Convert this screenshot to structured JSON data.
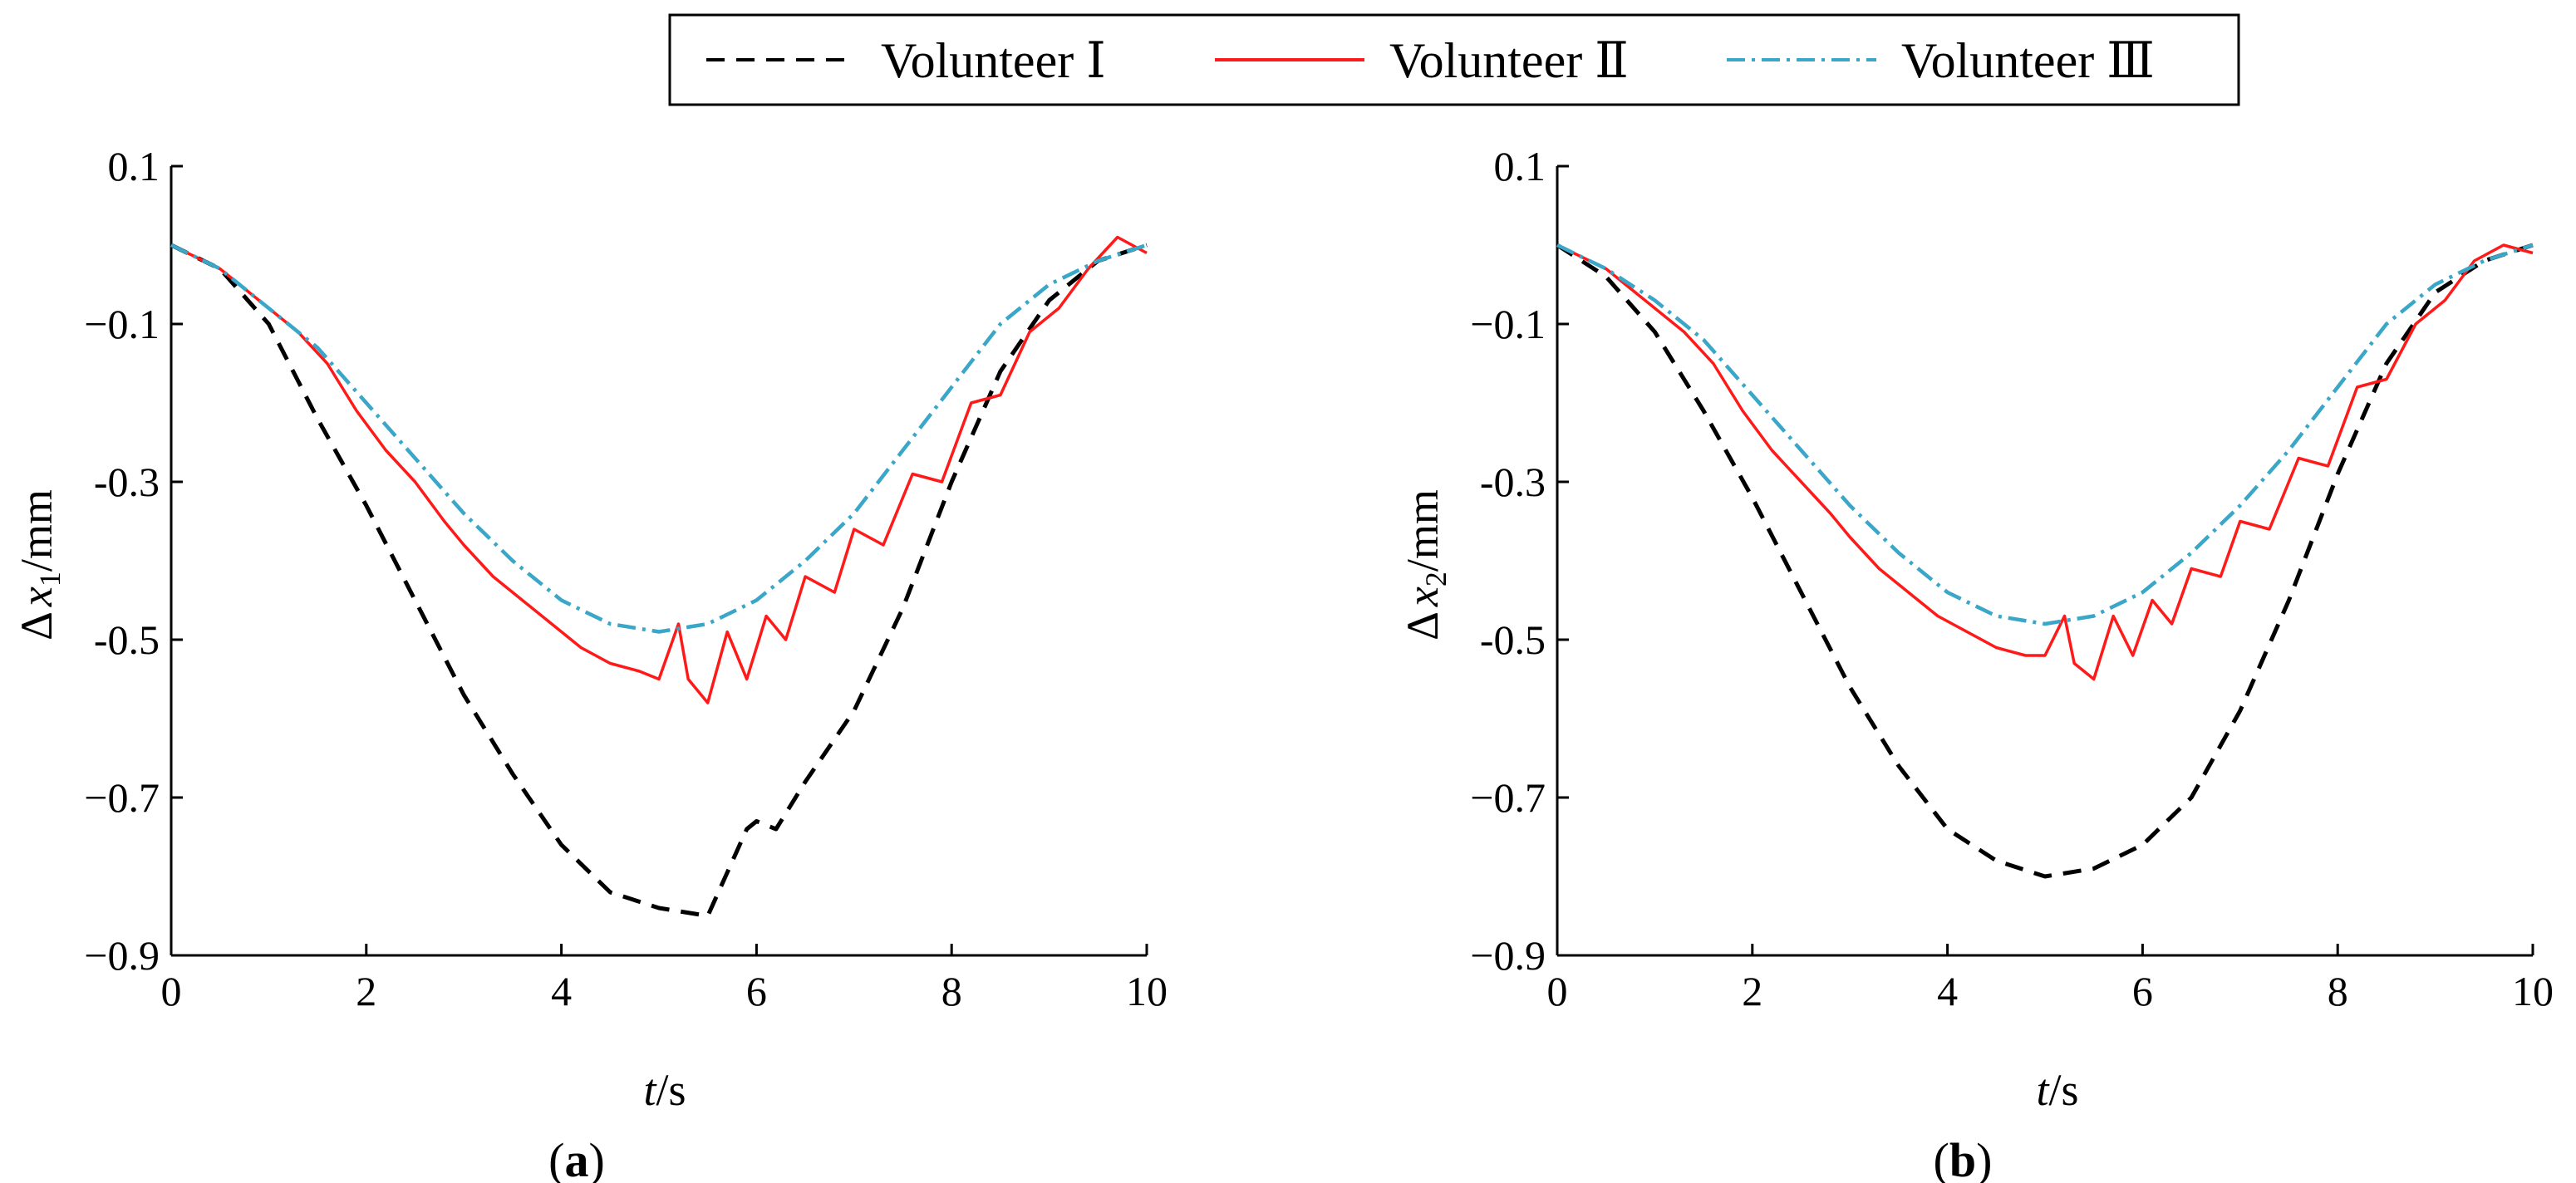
{
  "legend": {
    "entries": [
      {
        "label": "Volunteer Ⅰ",
        "color": "#000000",
        "style": "dashed"
      },
      {
        "label": "Volunteer Ⅱ",
        "color": "#ff1a1a",
        "style": "solid"
      },
      {
        "label": "Volunteer Ⅲ",
        "color": "#3aa6c8",
        "style": "dashdot"
      }
    ],
    "placement": "top-center"
  },
  "chart_data": [
    {
      "type": "line",
      "panel_label": "a",
      "xlabel": {
        "italic": "t",
        "rest": "/s"
      },
      "ylabel": {
        "prefix": "Δ",
        "var": "x",
        "sub": "1",
        "unit": "/mm"
      },
      "xlim": [
        0,
        10
      ],
      "ylim": [
        -0.9,
        0.1
      ],
      "xticks": [
        0,
        2,
        4,
        6,
        8,
        10
      ],
      "xtick_labels": [
        "0",
        "2",
        "4",
        "6",
        "8",
        "10"
      ],
      "yticks": [
        0.1,
        -0.1,
        -0.3,
        -0.5,
        -0.7,
        -0.9
      ],
      "ytick_labels": [
        "0.1",
        "−0.1",
        "-0.3",
        "-0.5",
        "−0.7",
        "−0.9"
      ],
      "grid": false,
      "series": [
        {
          "name": "Volunteer Ⅰ",
          "x": [
            0,
            0.5,
            1.0,
            1.5,
            2.0,
            2.5,
            3.0,
            3.5,
            4.0,
            4.5,
            5.0,
            5.5,
            5.9,
            6.0,
            6.2,
            6.5,
            7.0,
            7.5,
            8.0,
            8.5,
            9.0,
            9.5,
            10.0
          ],
          "values": [
            0.0,
            -0.03,
            -0.1,
            -0.22,
            -0.33,
            -0.45,
            -0.57,
            -0.67,
            -0.76,
            -0.82,
            -0.84,
            -0.85,
            -0.74,
            -0.73,
            -0.74,
            -0.68,
            -0.59,
            -0.46,
            -0.3,
            -0.16,
            -0.07,
            -0.02,
            0.0
          ]
        },
        {
          "name": "Volunteer Ⅱ",
          "x": [
            0,
            0.5,
            1.0,
            1.3,
            1.6,
            1.9,
            2.2,
            2.5,
            2.8,
            3.0,
            3.3,
            3.6,
            3.9,
            4.2,
            4.5,
            4.8,
            5.0,
            5.2,
            5.3,
            5.5,
            5.7,
            5.9,
            6.1,
            6.3,
            6.5,
            6.8,
            7.0,
            7.3,
            7.6,
            7.9,
            8.2,
            8.5,
            8.8,
            9.1,
            9.4,
            9.7,
            10.0
          ],
          "values": [
            0.0,
            -0.03,
            -0.08,
            -0.11,
            -0.15,
            -0.21,
            -0.26,
            -0.3,
            -0.35,
            -0.38,
            -0.42,
            -0.45,
            -0.48,
            -0.51,
            -0.53,
            -0.54,
            -0.55,
            -0.48,
            -0.55,
            -0.58,
            -0.49,
            -0.55,
            -0.47,
            -0.5,
            -0.42,
            -0.44,
            -0.36,
            -0.38,
            -0.29,
            -0.3,
            -0.2,
            -0.19,
            -0.11,
            -0.08,
            -0.03,
            0.01,
            -0.01
          ]
        },
        {
          "name": "Volunteer Ⅲ",
          "x": [
            0,
            0.5,
            1.0,
            1.5,
            2.0,
            2.5,
            3.0,
            3.5,
            4.0,
            4.5,
            5.0,
            5.5,
            6.0,
            6.5,
            7.0,
            7.5,
            8.0,
            8.5,
            9.0,
            9.5,
            10.0
          ],
          "values": [
            0.0,
            -0.03,
            -0.08,
            -0.13,
            -0.2,
            -0.27,
            -0.34,
            -0.4,
            -0.45,
            -0.48,
            -0.49,
            -0.48,
            -0.45,
            -0.4,
            -0.34,
            -0.26,
            -0.18,
            -0.1,
            -0.05,
            -0.02,
            0.0
          ]
        }
      ]
    },
    {
      "type": "line",
      "panel_label": "b",
      "xlabel": {
        "italic": "t",
        "rest": "/s"
      },
      "ylabel": {
        "prefix": "Δ",
        "var": "x",
        "sub": "2",
        "unit": "/mm"
      },
      "xlim": [
        0,
        10
      ],
      "ylim": [
        -0.9,
        0.1
      ],
      "xticks": [
        0,
        2,
        4,
        6,
        8,
        10
      ],
      "xtick_labels": [
        "0",
        "2",
        "4",
        "6",
        "8",
        "10"
      ],
      "yticks": [
        0.1,
        -0.1,
        -0.3,
        -0.5,
        -0.7,
        -0.9
      ],
      "ytick_labels": [
        "0.1",
        "−0.1",
        "-0.3",
        "-0.5",
        "−0.7",
        "−0.9"
      ],
      "grid": false,
      "series": [
        {
          "name": "Volunteer Ⅰ",
          "x": [
            0,
            0.5,
            1.0,
            1.5,
            2.0,
            2.5,
            3.0,
            3.5,
            4.0,
            4.5,
            5.0,
            5.5,
            6.0,
            6.5,
            7.0,
            7.5,
            8.0,
            8.5,
            9.0,
            9.5,
            10.0
          ],
          "values": [
            0.0,
            -0.04,
            -0.11,
            -0.21,
            -0.32,
            -0.44,
            -0.56,
            -0.66,
            -0.74,
            -0.78,
            -0.8,
            -0.79,
            -0.76,
            -0.7,
            -0.59,
            -0.45,
            -0.29,
            -0.15,
            -0.06,
            -0.02,
            0.0
          ]
        },
        {
          "name": "Volunteer Ⅱ",
          "x": [
            0,
            0.5,
            1.0,
            1.3,
            1.6,
            1.9,
            2.2,
            2.5,
            2.8,
            3.0,
            3.3,
            3.6,
            3.9,
            4.2,
            4.5,
            4.8,
            5.0,
            5.2,
            5.3,
            5.5,
            5.7,
            5.9,
            6.1,
            6.3,
            6.5,
            6.8,
            7.0,
            7.3,
            7.6,
            7.9,
            8.2,
            8.5,
            8.8,
            9.1,
            9.4,
            9.7,
            10.0
          ],
          "values": [
            0.0,
            -0.03,
            -0.08,
            -0.11,
            -0.15,
            -0.21,
            -0.26,
            -0.3,
            -0.34,
            -0.37,
            -0.41,
            -0.44,
            -0.47,
            -0.49,
            -0.51,
            -0.52,
            -0.52,
            -0.47,
            -0.53,
            -0.55,
            -0.47,
            -0.52,
            -0.45,
            -0.48,
            -0.41,
            -0.42,
            -0.35,
            -0.36,
            -0.27,
            -0.28,
            -0.18,
            -0.17,
            -0.1,
            -0.07,
            -0.02,
            0.0,
            -0.01
          ]
        },
        {
          "name": "Volunteer Ⅲ",
          "x": [
            0,
            0.5,
            1.0,
            1.5,
            2.0,
            2.5,
            3.0,
            3.5,
            4.0,
            4.5,
            5.0,
            5.5,
            6.0,
            6.5,
            7.0,
            7.5,
            8.0,
            8.5,
            9.0,
            9.5,
            10.0
          ],
          "values": [
            0.0,
            -0.03,
            -0.07,
            -0.12,
            -0.19,
            -0.26,
            -0.33,
            -0.39,
            -0.44,
            -0.47,
            -0.48,
            -0.47,
            -0.44,
            -0.39,
            -0.33,
            -0.26,
            -0.18,
            -0.1,
            -0.05,
            -0.02,
            0.0
          ]
        }
      ]
    }
  ]
}
